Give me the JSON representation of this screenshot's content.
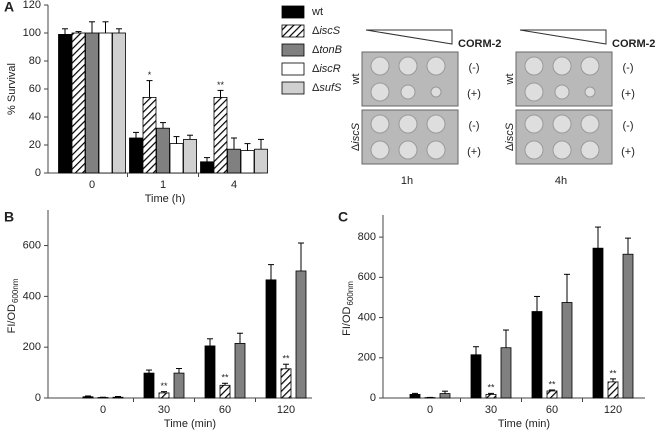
{
  "chart_data": [
    {
      "type": "bar",
      "panel_label": "A",
      "x_label": "Time (h)",
      "y_label": "% Survival",
      "categories": [
        "0",
        "1",
        "4"
      ],
      "ylim": [
        0,
        120
      ],
      "yticks": [
        0,
        20,
        40,
        60,
        80,
        100,
        120
      ],
      "grid": false,
      "legend": "right",
      "series": [
        {
          "name": "wt",
          "color": "#000000",
          "values": [
            99,
            25,
            8
          ],
          "errors": [
            4,
            4,
            3
          ],
          "annotations": [
            null,
            null,
            null
          ]
        },
        {
          "name": "ΔiscS",
          "color": "#000000",
          "pattern": "hatch",
          "values": [
            100,
            54,
            54
          ],
          "errors": [
            1,
            12,
            5
          ],
          "annotations": [
            null,
            "*",
            "**"
          ]
        },
        {
          "name": "ΔtonB",
          "color": "#808080",
          "values": [
            100,
            32,
            17
          ],
          "errors": [
            8,
            4,
            8
          ],
          "annotations": [
            null,
            null,
            null
          ]
        },
        {
          "name": "ΔiscR",
          "color": "#ffffff",
          "values": [
            100,
            21,
            16
          ],
          "errors": [
            8,
            5,
            5
          ],
          "annotations": [
            null,
            null,
            null
          ]
        },
        {
          "name": "ΔsufS",
          "color": "#d0d0d0",
          "values": [
            100,
            24,
            17
          ],
          "errors": [
            3,
            3,
            7
          ],
          "annotations": [
            null,
            null,
            null
          ]
        }
      ]
    },
    {
      "type": "bar",
      "panel_label": "B",
      "x_label": "Time (min)",
      "y_label": "FI/OD",
      "y_label_sub": "600nm",
      "categories": [
        "0",
        "30",
        "60",
        "120"
      ],
      "ylim": [
        0,
        740
      ],
      "yticks": [
        0,
        200,
        400,
        600
      ],
      "grid": false,
      "series": [
        {
          "color": "#000000",
          "values": [
            5,
            98,
            205,
            465
          ],
          "errors": [
            3,
            12,
            28,
            60
          ],
          "annotations": [
            null,
            null,
            null,
            null
          ]
        },
        {
          "color": "#000000",
          "pattern": "hatch",
          "values": [
            2,
            20,
            50,
            115
          ],
          "errors": [
            1,
            5,
            8,
            18
          ],
          "annotations": [
            null,
            "**",
            "**",
            "**"
          ]
        },
        {
          "color": "#808080",
          "values": [
            3,
            98,
            215,
            500
          ],
          "errors": [
            3,
            18,
            40,
            110
          ],
          "annotations": [
            null,
            null,
            null,
            null
          ]
        }
      ]
    },
    {
      "type": "bar",
      "panel_label": "C",
      "x_label": "Time (min)",
      "y_label": "FI/OD",
      "y_label_sub": "600nm",
      "categories": [
        "0",
        "30",
        "60",
        "120"
      ],
      "ylim": [
        0,
        910
      ],
      "yticks": [
        0,
        200,
        400,
        600,
        800
      ],
      "grid": false,
      "series": [
        {
          "color": "#000000",
          "values": [
            18,
            215,
            430,
            745
          ],
          "errors": [
            5,
            40,
            75,
            105
          ],
          "annotations": [
            null,
            null,
            null,
            null
          ]
        },
        {
          "color": "#000000",
          "pattern": "hatch",
          "values": [
            2,
            18,
            35,
            80
          ],
          "errors": [
            1,
            5,
            5,
            15
          ],
          "annotations": [
            null,
            "**",
            "**",
            "**"
          ]
        },
        {
          "color": "#808080",
          "values": [
            22,
            250,
            475,
            715
          ],
          "errors": [
            12,
            88,
            140,
            80
          ],
          "annotations": [
            null,
            null,
            null,
            null
          ]
        }
      ]
    }
  ],
  "plates": [
    {
      "time": "1h",
      "treatment": "CORM-2",
      "strains": [
        "wt",
        "ΔiscS"
      ],
      "conditions": [
        "(-)",
        "(+)",
        "(-)",
        "(+)"
      ]
    },
    {
      "time": "4h",
      "treatment": "CORM-2",
      "strains": [
        "wt",
        "ΔiscS"
      ],
      "conditions": [
        "(-)",
        "(+)",
        "(-)",
        "(+)"
      ]
    }
  ]
}
